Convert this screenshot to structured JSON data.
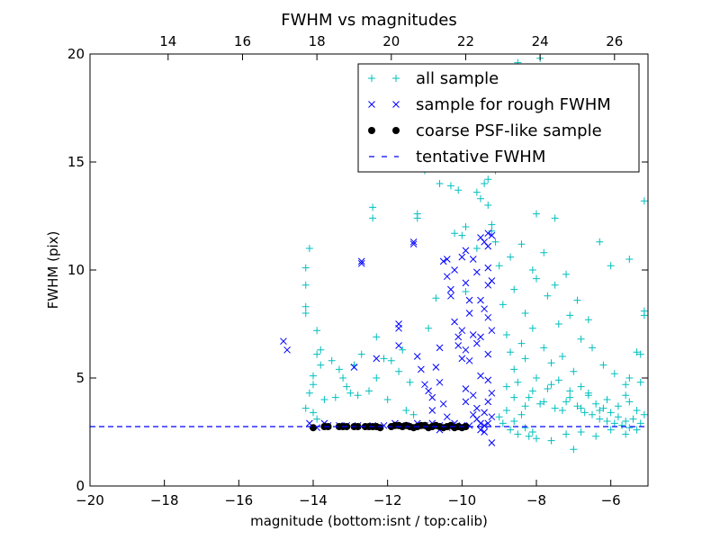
{
  "chart_data": {
    "type": "scatter",
    "title": "FWHM vs magnitudes",
    "xlabel": "magnitude (bottom:isnt / top:calib)",
    "ylabel": "FWHM (pix)",
    "xlim": [
      -20,
      -5
    ],
    "ylim": [
      0,
      20
    ],
    "x_ticks": [
      -20,
      -18,
      -16,
      -14,
      -12,
      -10,
      -8,
      -6
    ],
    "x_tick_labels": [
      "−20",
      "−18",
      "−16",
      "−14",
      "−12",
      "−10",
      "−8",
      "−6"
    ],
    "y_ticks": [
      0,
      5,
      10,
      15,
      20
    ],
    "y_tick_labels": [
      "0",
      "5",
      "10",
      "15",
      "20"
    ],
    "top_axis": {
      "ticks": [
        14,
        16,
        18,
        20,
        22,
        24,
        26
      ],
      "tick_labels": [
        "14",
        "16",
        "18",
        "20",
        "22",
        "24",
        "26"
      ],
      "offset": 31.9
    },
    "grid": false,
    "legend_position": "top-right",
    "series": [
      {
        "name": "all sample",
        "marker": "plus",
        "color": "#00bfbf",
        "points": [
          [
            -14.2,
            10.1
          ],
          [
            -14.1,
            11.0
          ],
          [
            -14.2,
            9.3
          ],
          [
            -14.2,
            8.3
          ],
          [
            -14.2,
            8.0
          ],
          [
            -13.9,
            7.2
          ],
          [
            -13.8,
            6.3
          ],
          [
            -13.9,
            6.1
          ],
          [
            -13.8,
            5.6
          ],
          [
            -14.0,
            5.1
          ],
          [
            -14.0,
            4.7
          ],
          [
            -14.1,
            4.3
          ],
          [
            -14.2,
            3.6
          ],
          [
            -14.0,
            3.4
          ],
          [
            -13.9,
            3.1
          ],
          [
            -13.7,
            4.0
          ],
          [
            -13.5,
            5.8
          ],
          [
            -13.4,
            4.1
          ],
          [
            -13.3,
            5.4
          ],
          [
            -13.2,
            5.0
          ],
          [
            -13.1,
            4.6
          ],
          [
            -13.0,
            4.3
          ],
          [
            -12.9,
            5.6
          ],
          [
            -12.8,
            4.2
          ],
          [
            -12.7,
            6.1
          ],
          [
            -12.5,
            4.4
          ],
          [
            -12.4,
            12.4
          ],
          [
            -12.4,
            12.9
          ],
          [
            -12.3,
            5.0
          ],
          [
            -12.3,
            6.9
          ],
          [
            -12.1,
            5.9
          ],
          [
            -12.0,
            4.0
          ],
          [
            -11.9,
            5.8
          ],
          [
            -11.7,
            5.3
          ],
          [
            -11.6,
            6.3
          ],
          [
            -11.5,
            3.5
          ],
          [
            -11.4,
            4.8
          ],
          [
            -11.3,
            3.3
          ],
          [
            -11.2,
            12.6
          ],
          [
            -11.2,
            12.4
          ],
          [
            -11.0,
            15.6
          ],
          [
            -11.0,
            14.6
          ],
          [
            -10.9,
            7.3
          ],
          [
            -10.7,
            8.7
          ],
          [
            -10.6,
            15.1
          ],
          [
            -10.6,
            14.0
          ],
          [
            -10.3,
            13.9
          ],
          [
            -10.2,
            11.7
          ],
          [
            -10.1,
            13.7
          ],
          [
            -10.0,
            11.6
          ],
          [
            -9.9,
            9.0
          ],
          [
            -9.9,
            12.0
          ],
          [
            -9.6,
            11.0
          ],
          [
            -9.6,
            13.6
          ],
          [
            -9.4,
            14.0
          ],
          [
            -9.3,
            13.0
          ],
          [
            -9.2,
            12.1
          ],
          [
            -9.1,
            11.3
          ],
          [
            -9.0,
            10.2
          ],
          [
            -9.1,
            14.6
          ],
          [
            -9.3,
            14.2
          ],
          [
            -9.5,
            13.3
          ],
          [
            -9.2,
            11.8
          ],
          [
            -8.5,
            19.6
          ],
          [
            -7.9,
            19.8
          ],
          [
            -7.5,
            18.2
          ],
          [
            -7.0,
            16.8
          ],
          [
            -6.9,
            15.8
          ],
          [
            -8.0,
            12.6
          ],
          [
            -7.5,
            12.4
          ],
          [
            -6.3,
            11.3
          ],
          [
            -6.0,
            10.2
          ],
          [
            -5.5,
            10.5
          ],
          [
            -5.1,
            13.2
          ],
          [
            -5.1,
            8.1
          ],
          [
            -5.1,
            7.9
          ],
          [
            -5.3,
            6.2
          ],
          [
            -5.2,
            6.1
          ],
          [
            -5.5,
            5.0
          ],
          [
            -5.6,
            4.2
          ],
          [
            -8.8,
            7.0
          ],
          [
            -8.7,
            6.2
          ],
          [
            -8.6,
            5.4
          ],
          [
            -8.5,
            4.8
          ],
          [
            -8.4,
            6.6
          ],
          [
            -8.3,
            5.9
          ],
          [
            -8.2,
            4.1
          ],
          [
            -8.1,
            7.3
          ],
          [
            -8.0,
            5.0
          ],
          [
            -7.9,
            3.8
          ],
          [
            -7.8,
            6.4
          ],
          [
            -7.7,
            4.5
          ],
          [
            -7.6,
            5.7
          ],
          [
            -7.5,
            3.6
          ],
          [
            -7.4,
            4.9
          ],
          [
            -7.3,
            6.0
          ],
          [
            -7.2,
            3.9
          ],
          [
            -7.1,
            4.4
          ],
          [
            -7.0,
            5.3
          ],
          [
            -6.9,
            3.7
          ],
          [
            -6.8,
            4.6
          ],
          [
            -6.7,
            3.4
          ],
          [
            -6.6,
            4.2
          ],
          [
            -6.5,
            3.3
          ],
          [
            -6.4,
            3.8
          ],
          [
            -6.3,
            3.1
          ],
          [
            -6.2,
            3.6
          ],
          [
            -6.1,
            3.0
          ],
          [
            -6.0,
            3.4
          ],
          [
            -5.9,
            2.9
          ],
          [
            -5.8,
            3.2
          ],
          [
            -5.7,
            2.8
          ],
          [
            -5.6,
            3.0
          ],
          [
            -5.5,
            2.7
          ],
          [
            -5.4,
            3.1
          ],
          [
            -5.3,
            2.6
          ],
          [
            -5.2,
            2.9
          ],
          [
            -5.1,
            3.3
          ],
          [
            -8.9,
            8.4
          ],
          [
            -8.6,
            9.1
          ],
          [
            -8.3,
            8.0
          ],
          [
            -8.0,
            9.6
          ],
          [
            -7.7,
            8.8
          ],
          [
            -7.4,
            7.5
          ],
          [
            -7.1,
            7.9
          ],
          [
            -6.8,
            6.8
          ],
          [
            -6.5,
            6.4
          ],
          [
            -6.2,
            5.6
          ],
          [
            -5.9,
            5.2
          ],
          [
            -5.6,
            4.7
          ],
          [
            -8.7,
            10.6
          ],
          [
            -8.4,
            11.2
          ],
          [
            -8.1,
            10.0
          ],
          [
            -7.8,
            10.8
          ],
          [
            -7.5,
            9.3
          ],
          [
            -7.2,
            9.8
          ],
          [
            -6.9,
            8.6
          ],
          [
            -6.6,
            7.7
          ],
          [
            -9.0,
            3.2
          ],
          [
            -8.9,
            2.9
          ],
          [
            -8.8,
            3.5
          ],
          [
            -8.7,
            2.6
          ],
          [
            -8.6,
            3.0
          ],
          [
            -8.5,
            2.4
          ],
          [
            -8.4,
            3.3
          ],
          [
            -8.3,
            2.7
          ],
          [
            -8.2,
            2.3
          ],
          [
            -8.1,
            2.5
          ],
          [
            -8.0,
            2.2
          ],
          [
            -7.6,
            2.1
          ],
          [
            -7.2,
            2.4
          ],
          [
            -6.8,
            2.5
          ],
          [
            -6.4,
            2.3
          ],
          [
            -6.0,
            2.6
          ],
          [
            -7.0,
            1.7
          ],
          [
            -5.6,
            2.4
          ],
          [
            -8.8,
            4.6
          ],
          [
            -8.6,
            4.1
          ],
          [
            -8.3,
            3.7
          ],
          [
            -8.1,
            4.4
          ],
          [
            -7.8,
            3.9
          ],
          [
            -7.6,
            4.7
          ],
          [
            -7.3,
            3.5
          ],
          [
            -7.1,
            4.1
          ],
          [
            -6.8,
            3.6
          ],
          [
            -6.6,
            4.3
          ],
          [
            -6.3,
            3.5
          ],
          [
            -6.1,
            4.0
          ],
          [
            -5.8,
            3.7
          ],
          [
            -5.5,
            3.9
          ],
          [
            -5.3,
            3.5
          ],
          [
            -5.2,
            4.8
          ]
        ]
      },
      {
        "name": "sample for rough FWHM",
        "marker": "x",
        "color": "#0000ff",
        "points": [
          [
            -14.8,
            6.7
          ],
          [
            -14.7,
            6.3
          ],
          [
            -13.7,
            2.9
          ],
          [
            -13.6,
            2.8
          ],
          [
            -13.3,
            2.8
          ],
          [
            -12.7,
            10.4
          ],
          [
            -12.7,
            10.3
          ],
          [
            -12.3,
            5.9
          ],
          [
            -11.7,
            7.5
          ],
          [
            -11.7,
            7.3
          ],
          [
            -11.7,
            6.5
          ],
          [
            -11.3,
            11.2
          ],
          [
            -11.3,
            11.3
          ],
          [
            -11.2,
            6.0
          ],
          [
            -11.1,
            5.4
          ],
          [
            -11.0,
            4.7
          ],
          [
            -10.9,
            4.4
          ],
          [
            -10.8,
            4.1
          ],
          [
            -10.7,
            5.5
          ],
          [
            -10.6,
            6.4
          ],
          [
            -10.6,
            4.8
          ],
          [
            -10.5,
            3.8
          ],
          [
            -10.5,
            10.4
          ],
          [
            -10.4,
            10.5
          ],
          [
            -10.4,
            9.7
          ],
          [
            -10.3,
            9.1
          ],
          [
            -10.3,
            8.8
          ],
          [
            -10.2,
            10.0
          ],
          [
            -10.2,
            7.6
          ],
          [
            -10.1,
            6.9
          ],
          [
            -10.1,
            6.5
          ],
          [
            -10.0,
            10.6
          ],
          [
            -10.0,
            7.2
          ],
          [
            -10.0,
            5.9
          ],
          [
            -9.9,
            10.9
          ],
          [
            -9.9,
            9.4
          ],
          [
            -9.9,
            6.3
          ],
          [
            -9.9,
            4.5
          ],
          [
            -9.8,
            8.6
          ],
          [
            -9.8,
            8.0
          ],
          [
            -9.8,
            5.8
          ],
          [
            -9.7,
            10.5
          ],
          [
            -9.7,
            7.0
          ],
          [
            -9.7,
            4.2
          ],
          [
            -9.6,
            9.9
          ],
          [
            -9.6,
            6.6
          ],
          [
            -9.6,
            3.6
          ],
          [
            -9.5,
            11.5
          ],
          [
            -9.5,
            8.6
          ],
          [
            -9.5,
            6.9
          ],
          [
            -9.5,
            5.1
          ],
          [
            -9.4,
            11.3
          ],
          [
            -9.4,
            8.2
          ],
          [
            -9.4,
            3.4
          ],
          [
            -9.3,
            11.7
          ],
          [
            -9.3,
            11.1
          ],
          [
            -9.3,
            10.1
          ],
          [
            -9.3,
            9.3
          ],
          [
            -9.3,
            7.8
          ],
          [
            -9.3,
            6.1
          ],
          [
            -9.3,
            4.9
          ],
          [
            -9.3,
            3.9
          ],
          [
            -9.2,
            11.6
          ],
          [
            -9.2,
            9.5
          ],
          [
            -9.2,
            7.2
          ],
          [
            -9.2,
            4.3
          ],
          [
            -9.2,
            3.2
          ],
          [
            -9.3,
            2.9
          ],
          [
            -9.4,
            2.8
          ],
          [
            -9.5,
            2.9
          ],
          [
            -9.6,
            3.1
          ],
          [
            -9.8,
            2.8
          ],
          [
            -10.0,
            2.8
          ],
          [
            -10.2,
            2.9
          ],
          [
            -10.4,
            2.7
          ],
          [
            -10.6,
            2.8
          ],
          [
            -10.8,
            2.9
          ],
          [
            -11.0,
            2.8
          ],
          [
            -11.2,
            2.9
          ],
          [
            -11.5,
            2.8
          ],
          [
            -11.8,
            2.9
          ],
          [
            -12.1,
            2.8
          ],
          [
            -12.4,
            2.8
          ],
          [
            -12.8,
            2.8
          ],
          [
            -13.1,
            2.8
          ],
          [
            -13.9,
            2.7
          ],
          [
            -14.1,
            2.9
          ],
          [
            -9.2,
            2.0
          ],
          [
            -10.6,
            2.6
          ],
          [
            -9.5,
            2.6
          ],
          [
            -9.9,
            3.9
          ],
          [
            -10.4,
            3.2
          ],
          [
            -9.7,
            3.3
          ],
          [
            -10.8,
            3.5
          ],
          [
            -9.4,
            2.5
          ],
          [
            -12.9,
            5.5
          ]
        ]
      },
      {
        "name": "coarse PSF-like sample",
        "marker": "dot",
        "color": "#000000",
        "points": [
          [
            -14.0,
            2.7
          ],
          [
            -13.7,
            2.75
          ],
          [
            -13.6,
            2.75
          ],
          [
            -13.3,
            2.75
          ],
          [
            -13.2,
            2.75
          ],
          [
            -13.1,
            2.75
          ],
          [
            -12.9,
            2.75
          ],
          [
            -12.8,
            2.75
          ],
          [
            -12.6,
            2.75
          ],
          [
            -12.5,
            2.75
          ],
          [
            -12.4,
            2.75
          ],
          [
            -12.3,
            2.75
          ],
          [
            -12.2,
            2.7
          ],
          [
            -11.9,
            2.75
          ],
          [
            -11.8,
            2.8
          ],
          [
            -11.7,
            2.8
          ],
          [
            -11.6,
            2.75
          ],
          [
            -11.5,
            2.8
          ],
          [
            -11.4,
            2.75
          ],
          [
            -11.3,
            2.7
          ],
          [
            -11.2,
            2.75
          ],
          [
            -11.1,
            2.8
          ],
          [
            -11.0,
            2.8
          ],
          [
            -10.9,
            2.7
          ],
          [
            -10.8,
            2.75
          ],
          [
            -10.7,
            2.8
          ],
          [
            -10.6,
            2.75
          ],
          [
            -10.5,
            2.7
          ],
          [
            -10.4,
            2.75
          ],
          [
            -10.3,
            2.8
          ],
          [
            -10.2,
            2.7
          ],
          [
            -10.1,
            2.75
          ],
          [
            -10.0,
            2.7
          ],
          [
            -9.9,
            2.75
          ]
        ]
      },
      {
        "name": "tentative FWHM",
        "marker": "dashed-line",
        "color": "#0000ff",
        "y": 2.75
      }
    ]
  }
}
